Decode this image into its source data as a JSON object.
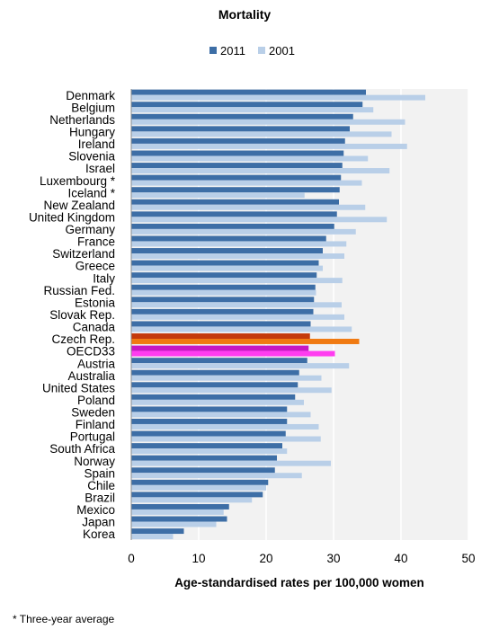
{
  "chart_data": {
    "type": "bar",
    "orientation": "horizontal",
    "title": "Mortality",
    "xlabel": "Age-standardised rates per 100,000 women",
    "ylabel": "",
    "xlim": [
      0,
      50
    ],
    "xticks": [
      0,
      10,
      20,
      30,
      40,
      50
    ],
    "grid": true,
    "legend_position": "top",
    "categories": [
      "Denmark",
      "Belgium",
      "Netherlands",
      "Hungary",
      "Ireland",
      "Slovenia",
      "Israel",
      "Luxembourg *",
      "Iceland *",
      "New Zealand",
      "United Kingdom",
      "Germany",
      "France",
      "Switzerland",
      "Greece",
      "Italy",
      "Russian Fed.",
      "Estonia",
      "Slovak Rep.",
      "Canada",
      "Czech Rep.",
      "OECD33",
      "Austria",
      "Australia",
      "United States",
      "Poland",
      "Sweden",
      "Finland",
      "Portugal",
      "South Africa",
      "Norway",
      "Spain",
      "Chile",
      "Brazil",
      "Mexico",
      "Japan",
      "Korea"
    ],
    "series": [
      {
        "name": "2011",
        "color": "#3d6ea6",
        "values": [
          34.8,
          34.3,
          32.9,
          32.4,
          31.7,
          31.5,
          31.3,
          31.1,
          30.9,
          30.8,
          30.5,
          30.1,
          28.9,
          28.4,
          27.8,
          27.5,
          27.3,
          27.1,
          27.0,
          26.6,
          26.5,
          26.3,
          26.1,
          24.9,
          24.7,
          24.3,
          23.1,
          23.1,
          22.9,
          22.4,
          21.6,
          21.3,
          20.3,
          19.5,
          14.5,
          14.2,
          7.8
        ]
      },
      {
        "name": "2001",
        "color": "#b9cfe8",
        "values": [
          43.6,
          35.9,
          40.6,
          38.6,
          40.9,
          35.1,
          38.3,
          34.2,
          25.7,
          34.7,
          37.9,
          33.3,
          31.9,
          31.6,
          28.4,
          31.3,
          27.4,
          31.2,
          31.6,
          32.7,
          33.8,
          30.2,
          32.3,
          28.2,
          29.7,
          25.6,
          26.6,
          27.8,
          28.1,
          23.1,
          29.6,
          25.3,
          20.0,
          17.9,
          13.7,
          12.6,
          6.2
        ]
      }
    ],
    "highlights": {
      "Czech Rep.": {
        "2011": "#c43a0b",
        "2001": "#f07a12"
      },
      "OECD33": {
        "2011": "#c718c3",
        "2001": "#ff3df0"
      }
    },
    "footnote": "* Three-year average"
  }
}
